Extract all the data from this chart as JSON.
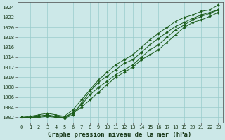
{
  "title": "Graphe pression niveau de la mer (hPa)",
  "bg_color": "#cce8e8",
  "grid_color": "#99cccc",
  "line_color": "#1a5c1a",
  "x_min": 0,
  "x_max": 23,
  "y_min": 1001,
  "y_max": 1025,
  "y_ticks": [
    1002,
    1004,
    1006,
    1008,
    1010,
    1012,
    1014,
    1016,
    1018,
    1020,
    1022,
    1024
  ],
  "series": [
    [
      1002.0,
      1002.0,
      1002.2,
      1002.5,
      1002.2,
      1002.0,
      1002.8,
      1004.0,
      1005.5,
      1007.0,
      1008.5,
      1010.0,
      1011.0,
      1012.0,
      1013.5,
      1014.5,
      1015.5,
      1017.0,
      1018.5,
      1020.0,
      1021.0,
      1021.5,
      1022.2,
      1023.0
    ],
    [
      1002.0,
      1002.0,
      1002.0,
      1002.2,
      1002.0,
      1002.0,
      1003.0,
      1004.5,
      1006.5,
      1008.0,
      1009.2,
      1010.5,
      1011.5,
      1012.5,
      1014.0,
      1015.5,
      1016.5,
      1018.0,
      1019.5,
      1020.5,
      1021.5,
      1022.2,
      1022.8,
      1023.5
    ],
    [
      1002.0,
      1002.0,
      1002.2,
      1002.5,
      1002.0,
      1001.8,
      1002.5,
      1004.8,
      1007.2,
      1009.0,
      1010.2,
      1011.5,
      1012.8,
      1013.5,
      1015.0,
      1016.5,
      1017.8,
      1019.0,
      1020.2,
      1021.0,
      1021.8,
      1022.5,
      1023.0,
      1023.5
    ],
    [
      1002.0,
      1002.2,
      1002.5,
      1002.8,
      1002.5,
      1002.2,
      1003.5,
      1005.5,
      1007.5,
      1009.5,
      1011.0,
      1012.5,
      1013.5,
      1014.5,
      1016.0,
      1017.5,
      1018.8,
      1020.0,
      1021.2,
      1022.0,
      1022.5,
      1023.2,
      1023.5,
      1024.5
    ]
  ],
  "font_family": "monospace",
  "title_fontsize": 6.5,
  "tick_fontsize": 5.0,
  "figwidth": 3.2,
  "figheight": 2.0,
  "dpi": 100
}
